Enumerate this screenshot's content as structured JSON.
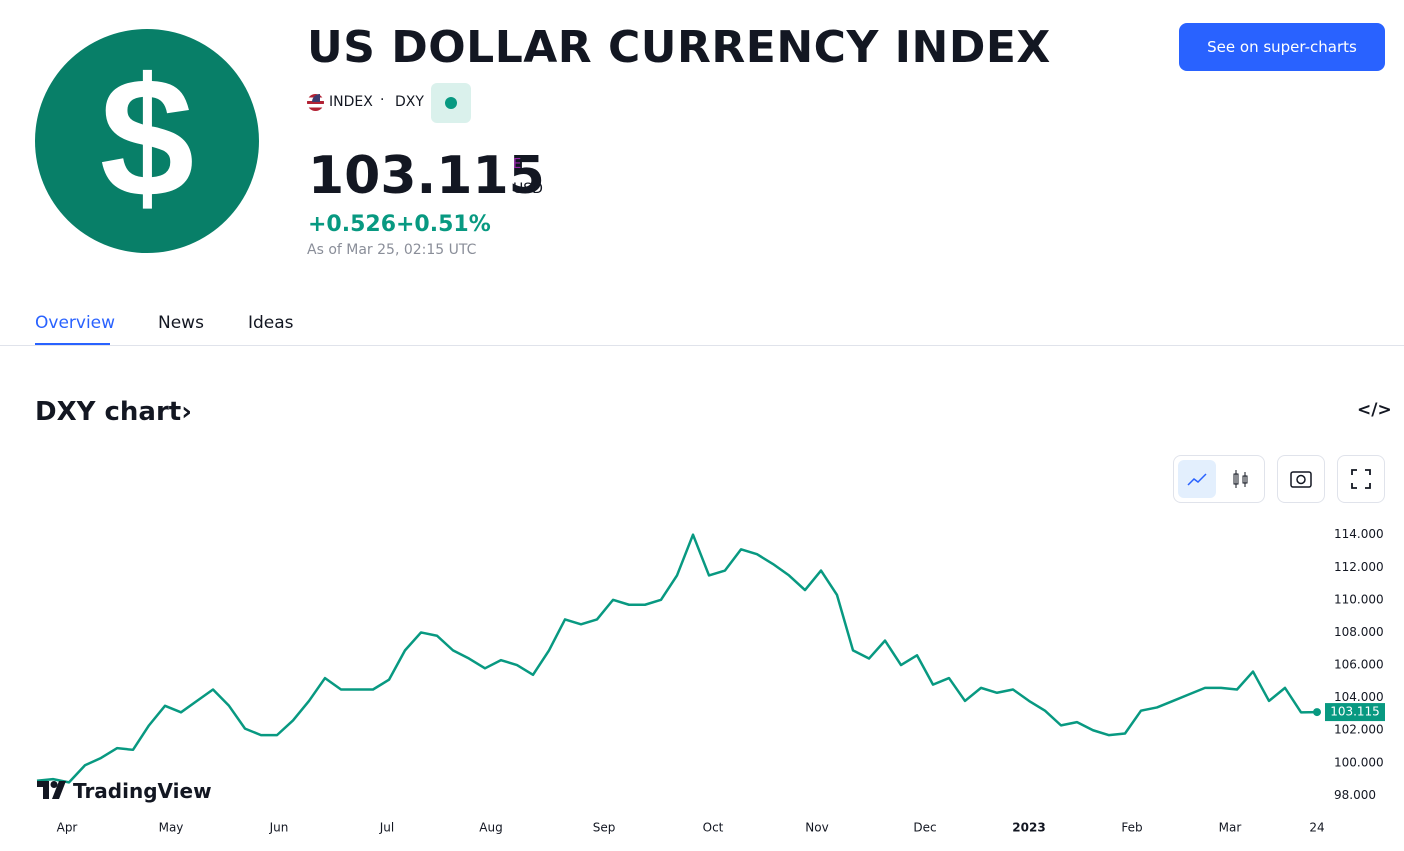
{
  "header": {
    "title": "US DOLLAR CURRENCY INDEX",
    "exchange": "INDEX",
    "symbol": "DXY",
    "price": "103.115",
    "price_flag": "E",
    "currency": "USD",
    "change": "+0.526",
    "change_percent": "+0.51%",
    "as_of": "As of Mar 25, 02:15 UTC",
    "button": "See on super-charts"
  },
  "tabs": [
    "Overview",
    "News",
    "Ideas"
  ],
  "section_title": "DXY chart›",
  "logo_text": "TradingView",
  "chart": {
    "type": "line",
    "series": [
      {
        "name": "DXY",
        "color": "#089981",
        "values": [
          98.9,
          99.0,
          98.8,
          99.85,
          100.3,
          100.9,
          100.8,
          102.3,
          103.5,
          103.1,
          103.8,
          104.5,
          103.5,
          102.1,
          101.7,
          101.7,
          102.6,
          103.8,
          105.2,
          104.5,
          104.5,
          104.5,
          105.1,
          106.9,
          108.0,
          107.8,
          106.9,
          106.4,
          105.8,
          106.3,
          106.0,
          105.4,
          106.9,
          108.8,
          108.5,
          108.8,
          110.0,
          109.7,
          109.7,
          110.0,
          111.5,
          114.0,
          111.5,
          111.8,
          113.1,
          112.8,
          112.2,
          111.5,
          110.6,
          111.8,
          110.3,
          106.9,
          106.4,
          107.5,
          106.0,
          106.6,
          104.8,
          105.2,
          103.8,
          104.6,
          104.3,
          104.5,
          103.8,
          103.2,
          102.3,
          102.5,
          102.0,
          101.7,
          101.8,
          103.2,
          103.4,
          103.8,
          104.2,
          104.6,
          104.6,
          104.5,
          105.6,
          103.8,
          104.6,
          103.1,
          103.115
        ]
      }
    ],
    "xlim": [
      0,
      80
    ],
    "xticks": [
      {
        "value": 1.875,
        "label": "Apr"
      },
      {
        "value": 8.375,
        "label": "May"
      },
      {
        "value": 15.125,
        "label": "Jun"
      },
      {
        "value": 21.875,
        "label": "Jul"
      },
      {
        "value": 28.375,
        "label": "Aug"
      },
      {
        "value": 35.44,
        "label": "Sep"
      },
      {
        "value": 42.25,
        "label": "Oct"
      },
      {
        "value": 48.75,
        "label": "Nov"
      },
      {
        "value": 55.5,
        "label": "Dec"
      },
      {
        "value": 62,
        "label": "2023"
      },
      {
        "value": 68.44,
        "label": "Feb"
      },
      {
        "value": 74.56,
        "label": "Mar"
      },
      {
        "value": 80,
        "label": "24"
      }
    ],
    "ylim": [
      96.8,
      114.9
    ],
    "yticks": [
      {
        "value": 98,
        "label": "98.000"
      },
      {
        "value": 100,
        "label": "100.000"
      },
      {
        "value": 102,
        "label": "102.000"
      },
      {
        "value": 104,
        "label": "104.000"
      },
      {
        "value": 106,
        "label": "106.000"
      },
      {
        "value": 108,
        "label": "108.000"
      },
      {
        "value": 110,
        "label": "110.000"
      },
      {
        "value": 112,
        "label": "112.000"
      },
      {
        "value": 114,
        "label": "114.000"
      }
    ],
    "grid": false
  }
}
